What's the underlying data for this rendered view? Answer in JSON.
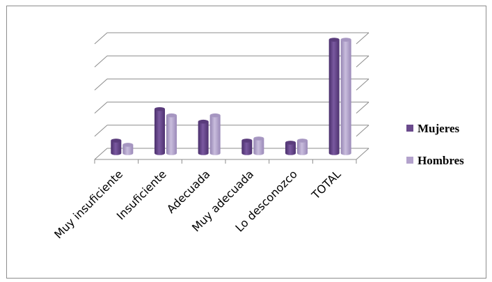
{
  "chart_data": {
    "type": "bar",
    "style": "3d-cylinder",
    "categories": [
      "Muy insuficiente",
      "Insuficiente",
      "Adecuada",
      "Muy adecuada",
      "Lo desconozco",
      "TOTAL"
    ],
    "series": [
      {
        "name": "Mujeres",
        "color": "#6a4a8c",
        "values": [
          0.6,
          2.1,
          1.5,
          0.6,
          0.5,
          5.4
        ]
      },
      {
        "name": "Hombres",
        "color": "#b3a2cc",
        "values": [
          0.4,
          1.8,
          1.8,
          0.7,
          0.6,
          5.4
        ]
      }
    ],
    "ylim": [
      0,
      5.5
    ],
    "y_gridlines": 6,
    "grid": true,
    "y_tick_labels_shown": false,
    "legend": {
      "placement": "right"
    }
  }
}
